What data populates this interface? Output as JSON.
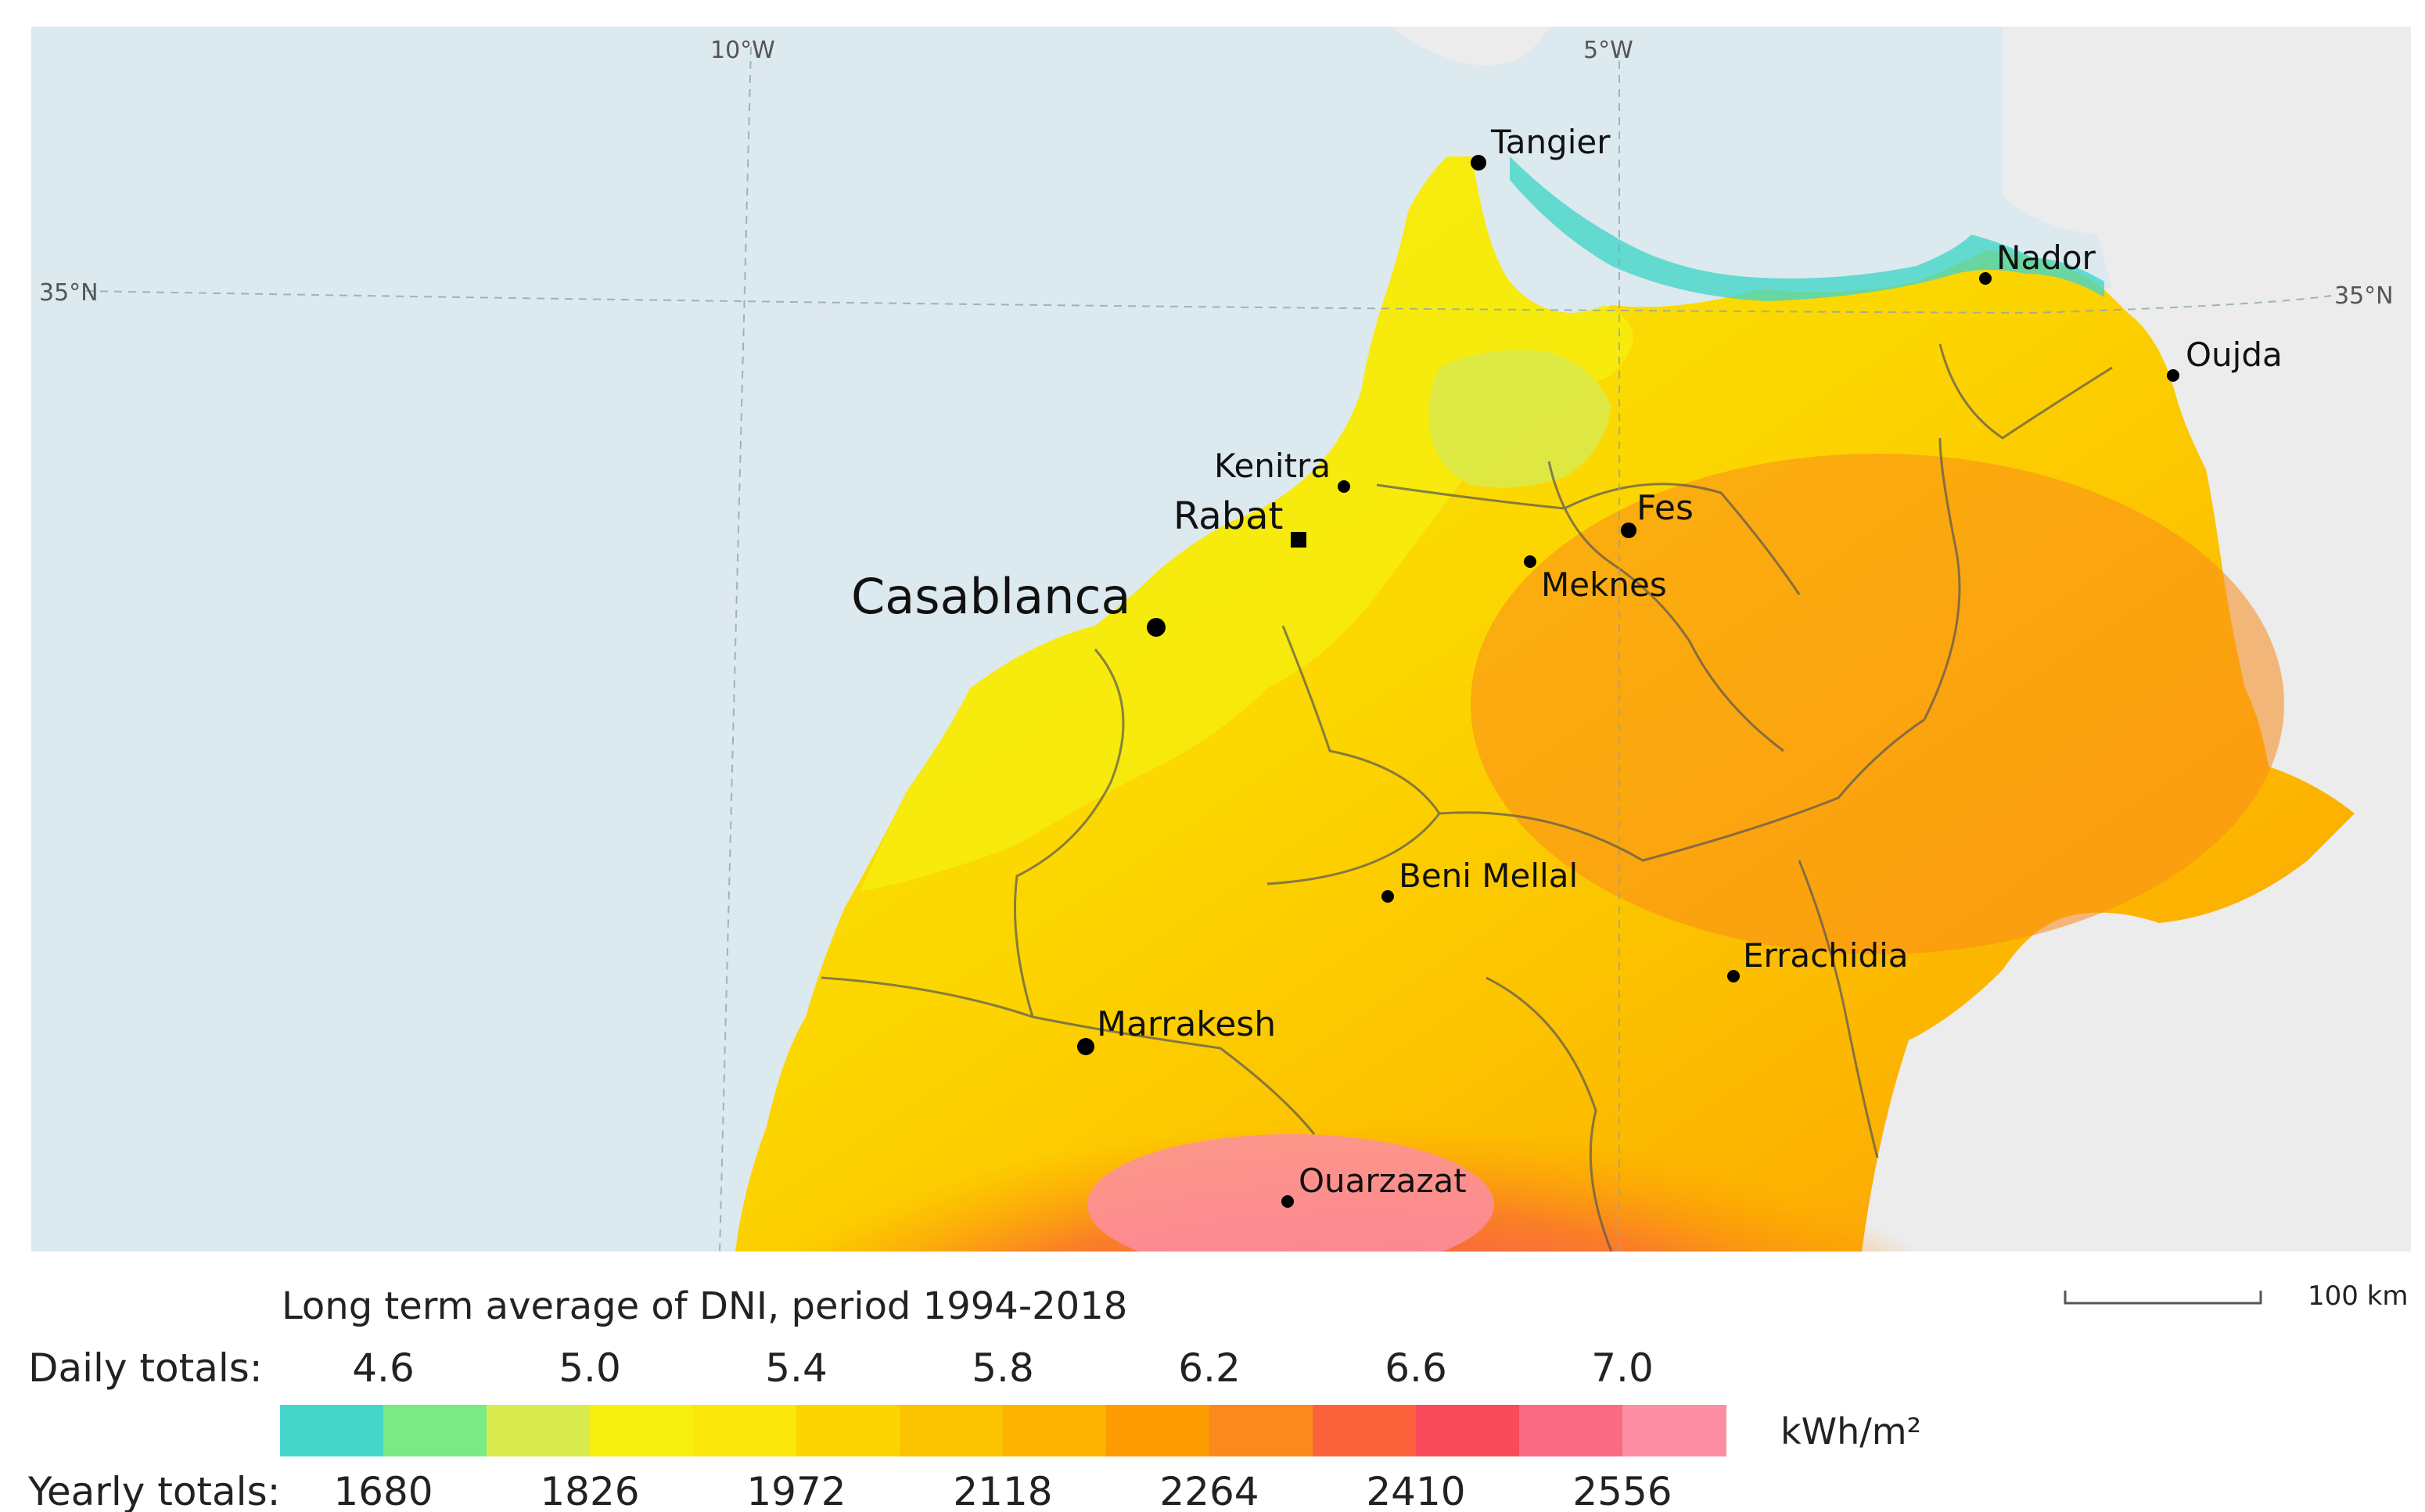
{
  "map": {
    "graticule": {
      "lon_labels": [
        "10°W",
        "5°W"
      ],
      "lat_label_left": "35°N",
      "lat_label_right": "35°N"
    },
    "cities": [
      {
        "id": "tangier",
        "name": "Tangier"
      },
      {
        "id": "nador",
        "name": "Nador"
      },
      {
        "id": "oujda",
        "name": "Oujda"
      },
      {
        "id": "kenitra",
        "name": "Kenitra"
      },
      {
        "id": "rabat",
        "name": "Rabat"
      },
      {
        "id": "fes",
        "name": "Fes"
      },
      {
        "id": "meknes",
        "name": "Meknes"
      },
      {
        "id": "casablanca",
        "name": "Casablanca"
      },
      {
        "id": "beni-mellal",
        "name": "Beni Mellal"
      },
      {
        "id": "errachidia",
        "name": "Errachidia"
      },
      {
        "id": "marrakesh",
        "name": "Marrakesh"
      },
      {
        "id": "ouarzazat",
        "name": "Ouarzazat"
      }
    ],
    "scale_bar": {
      "label": "100 km"
    },
    "colors": {
      "sea": "#dce9ef",
      "foreign_land": "#ececec"
    }
  },
  "legend": {
    "title": "Long term average of DNI, period 1994-2018",
    "daily_label": "Daily totals:",
    "daily_values": [
      "4.6",
      "5.0",
      "5.4",
      "5.8",
      "6.2",
      "6.6",
      "7.0"
    ],
    "yearly_label": "Yearly totals:",
    "yearly_values": [
      "1680",
      "1826",
      "1972",
      "2118",
      "2264",
      "2410",
      "2556"
    ],
    "unit": "kWh/m²",
    "colors": [
      "#44d6c8",
      "#7bea84",
      "#d9ea4e",
      "#f6ef10",
      "#f9e80a",
      "#fcd500",
      "#fcc400",
      "#fcb200",
      "#fc9c00",
      "#fa8a1c",
      "#fb623c",
      "#f94a5c",
      "#fb6a84",
      "#fb8ea2"
    ]
  }
}
